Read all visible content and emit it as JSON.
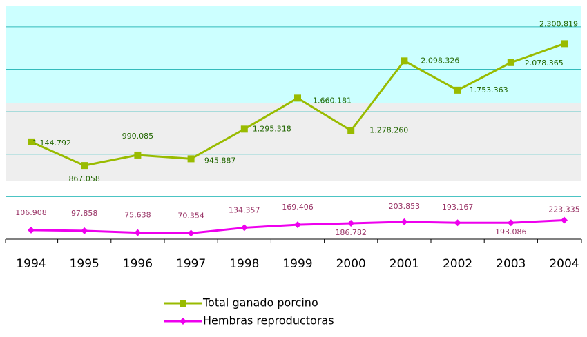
{
  "chart_data": {
    "type": "line",
    "categories": [
      "1994",
      "1995",
      "1996",
      "1997",
      "1998",
      "1999",
      "2000",
      "2001",
      "2002",
      "2003",
      "2004"
    ],
    "series": [
      {
        "name": "Total ganado porcino",
        "color": "#99bb00",
        "values": [
          1144792,
          867058,
          990085,
          945887,
          1295318,
          1660181,
          1278260,
          2098326,
          1753363,
          2078365,
          2300819
        ],
        "value_labels": [
          "1.144.792",
          "867.058",
          "990.085",
          "945.887",
          "1.295.318",
          "1.660.181",
          "1.278.260",
          "2.098.326",
          "1.753.363",
          "2.078.365",
          "2.300.819"
        ]
      },
      {
        "name": "Hembras reproductoras",
        "color": "#ee00ee",
        "values": [
          106908,
          97858,
          75638,
          70354,
          134357,
          169406,
          186782,
          203853,
          193167,
          193086,
          223335
        ],
        "value_labels": [
          "106.908",
          "97.858",
          "75.638",
          "70.354",
          "134.357",
          "169.406",
          "186.782",
          "203.853",
          "193.167",
          "193.086",
          "223.335"
        ]
      }
    ],
    "ylim": [
      0,
      2750000
    ],
    "yticks": [
      500000,
      1000000,
      1500000,
      2000000,
      2500000
    ],
    "grid": true,
    "legend": "bottom"
  }
}
